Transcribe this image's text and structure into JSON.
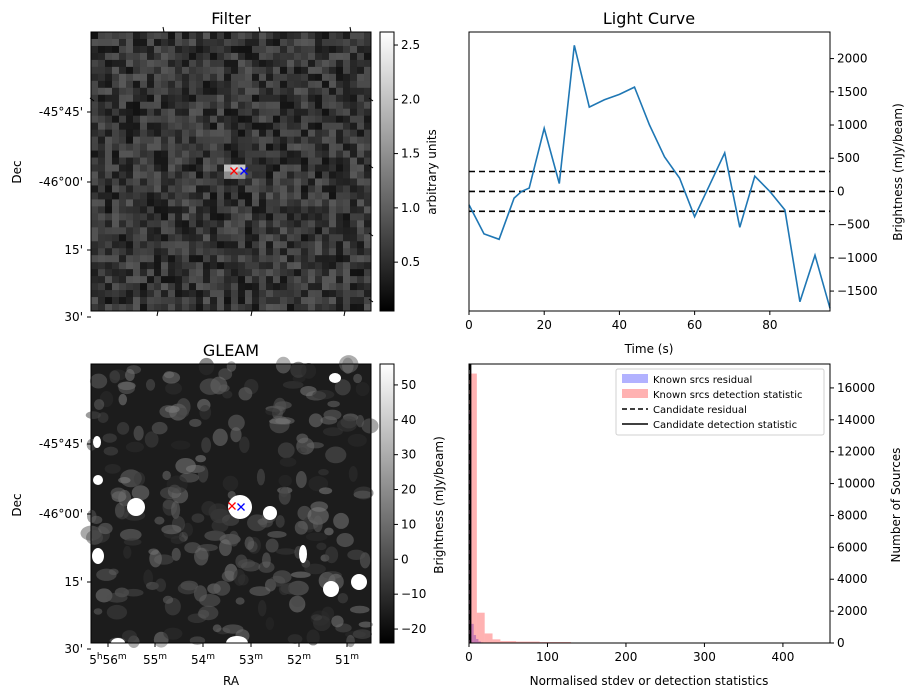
{
  "filter_panel": {
    "title": "Filter",
    "ylabel": "Dec",
    "dec_ticks": [
      "-45°45'",
      "-46°00'",
      "15'",
      "30'"
    ],
    "colorbar": {
      "label": "arbitrary units",
      "min": 0.05,
      "max": 2.62,
      "ticks": [
        0.5,
        1.0,
        1.5,
        2.0,
        2.5
      ],
      "tick_labels": [
        "0.5",
        "1.0",
        "1.5",
        "2.0",
        "2.5"
      ]
    },
    "markers": {
      "known_color": "#ff0000",
      "candidate_color": "#0000ff"
    }
  },
  "gleam_panel": {
    "title": "GLEAM",
    "ylabel": "Dec",
    "xlabel": "RA",
    "dec_ticks": [
      "-45°45'",
      "-46°00'",
      "15'",
      "30'"
    ],
    "ra_ticks": [
      {
        "h": "5",
        "hs": "h",
        "m": "56",
        "ms": "m"
      },
      {
        "m": "55",
        "ms": "m"
      },
      {
        "m": "54",
        "ms": "m"
      },
      {
        "m": "53",
        "ms": "m"
      },
      {
        "m": "52",
        "ms": "m"
      },
      {
        "m": "51",
        "ms": "m"
      }
    ],
    "colorbar": {
      "label": "Brightness (mJy/beam)",
      "min": -24,
      "max": 56,
      "ticks": [
        -20,
        -10,
        0,
        10,
        20,
        30,
        40,
        50
      ],
      "tick_labels": [
        "−20",
        "−10",
        "0",
        "10",
        "20",
        "30",
        "40",
        "50"
      ]
    }
  },
  "chart_data": [
    {
      "type": "line",
      "title": "Light Curve",
      "xlabel": "Time (s)",
      "ylabel": "Brightness (mJy/beam)",
      "xlim": [
        0,
        96
      ],
      "ylim": [
        -1800,
        2400
      ],
      "x_ticks": [
        0,
        20,
        40,
        60,
        80
      ],
      "y_ticks": [
        -1500,
        -1000,
        -500,
        0,
        500,
        1000,
        1500,
        2000
      ],
      "y_tick_labels": [
        "−1500",
        "−1000",
        "−500",
        "0",
        "500",
        "1000",
        "1500",
        "2000"
      ],
      "series": [
        {
          "color": "#1f77b4",
          "x": [
            0,
            4,
            8,
            12,
            14,
            16,
            20,
            24,
            28,
            32,
            36,
            40,
            44,
            48,
            52,
            56,
            60,
            64,
            68,
            72,
            76,
            80,
            84,
            88,
            92,
            96
          ],
          "y": [
            -200,
            -640,
            -720,
            -100,
            0,
            50,
            950,
            120,
            2200,
            1270,
            1380,
            1460,
            1570,
            1000,
            520,
            200,
            -380,
            100,
            580,
            -540,
            230,
            0,
            -280,
            -1660,
            -960,
            -1760
          ]
        }
      ],
      "hlines": [
        {
          "y": 300,
          "style": "dashed",
          "color": "#000000"
        },
        {
          "y": 0,
          "style": "dashed",
          "color": "#000000"
        },
        {
          "y": -300,
          "style": "dashed",
          "color": "#000000"
        }
      ]
    },
    {
      "type": "bar",
      "title": "",
      "xlabel": "Normalised stdev or detection statistics",
      "ylabel": "Number of Sources",
      "xlim": [
        0,
        460
      ],
      "ylim": [
        0,
        17500
      ],
      "x_ticks": [
        0,
        100,
        200,
        300,
        400
      ],
      "y_ticks": [
        0,
        2000,
        4000,
        6000,
        8000,
        10000,
        12000,
        14000,
        16000
      ],
      "y_tick_labels": [
        "0",
        "2000",
        "4000",
        "6000",
        "8000",
        "10000",
        "12000",
        "14000",
        "16000"
      ],
      "legend_position": "top-right",
      "series": [
        {
          "name": "Known srcs residual",
          "color": "#0000ff",
          "alpha": 0.3,
          "bins": [
            [
              0,
              3,
              14500
            ],
            [
              3,
              6,
              1200
            ],
            [
              6,
              9,
              500
            ],
            [
              9,
              12,
              250
            ],
            [
              12,
              15,
              100
            ],
            [
              15,
              18,
              40
            ]
          ]
        },
        {
          "name": "Known srcs detection statistic",
          "color": "#ff0000",
          "alpha": 0.3,
          "bins": [
            [
              0,
              10,
              16900
            ],
            [
              10,
              20,
              1900
            ],
            [
              20,
              30,
              600
            ],
            [
              30,
              40,
              230
            ],
            [
              40,
              60,
              120
            ],
            [
              60,
              90,
              90
            ],
            [
              90,
              130,
              60
            ],
            [
              130,
              200,
              30
            ],
            [
              200,
              280,
              15
            ],
            [
              260,
              270,
              25
            ],
            [
              420,
              430,
              12
            ]
          ]
        }
      ],
      "lines": [
        {
          "name": "Candidate residual",
          "x": 1,
          "style": "dashed",
          "color": "#000000"
        },
        {
          "name": "Candidate detection statistic",
          "x": 2,
          "style": "solid",
          "color": "#000000"
        }
      ]
    }
  ]
}
